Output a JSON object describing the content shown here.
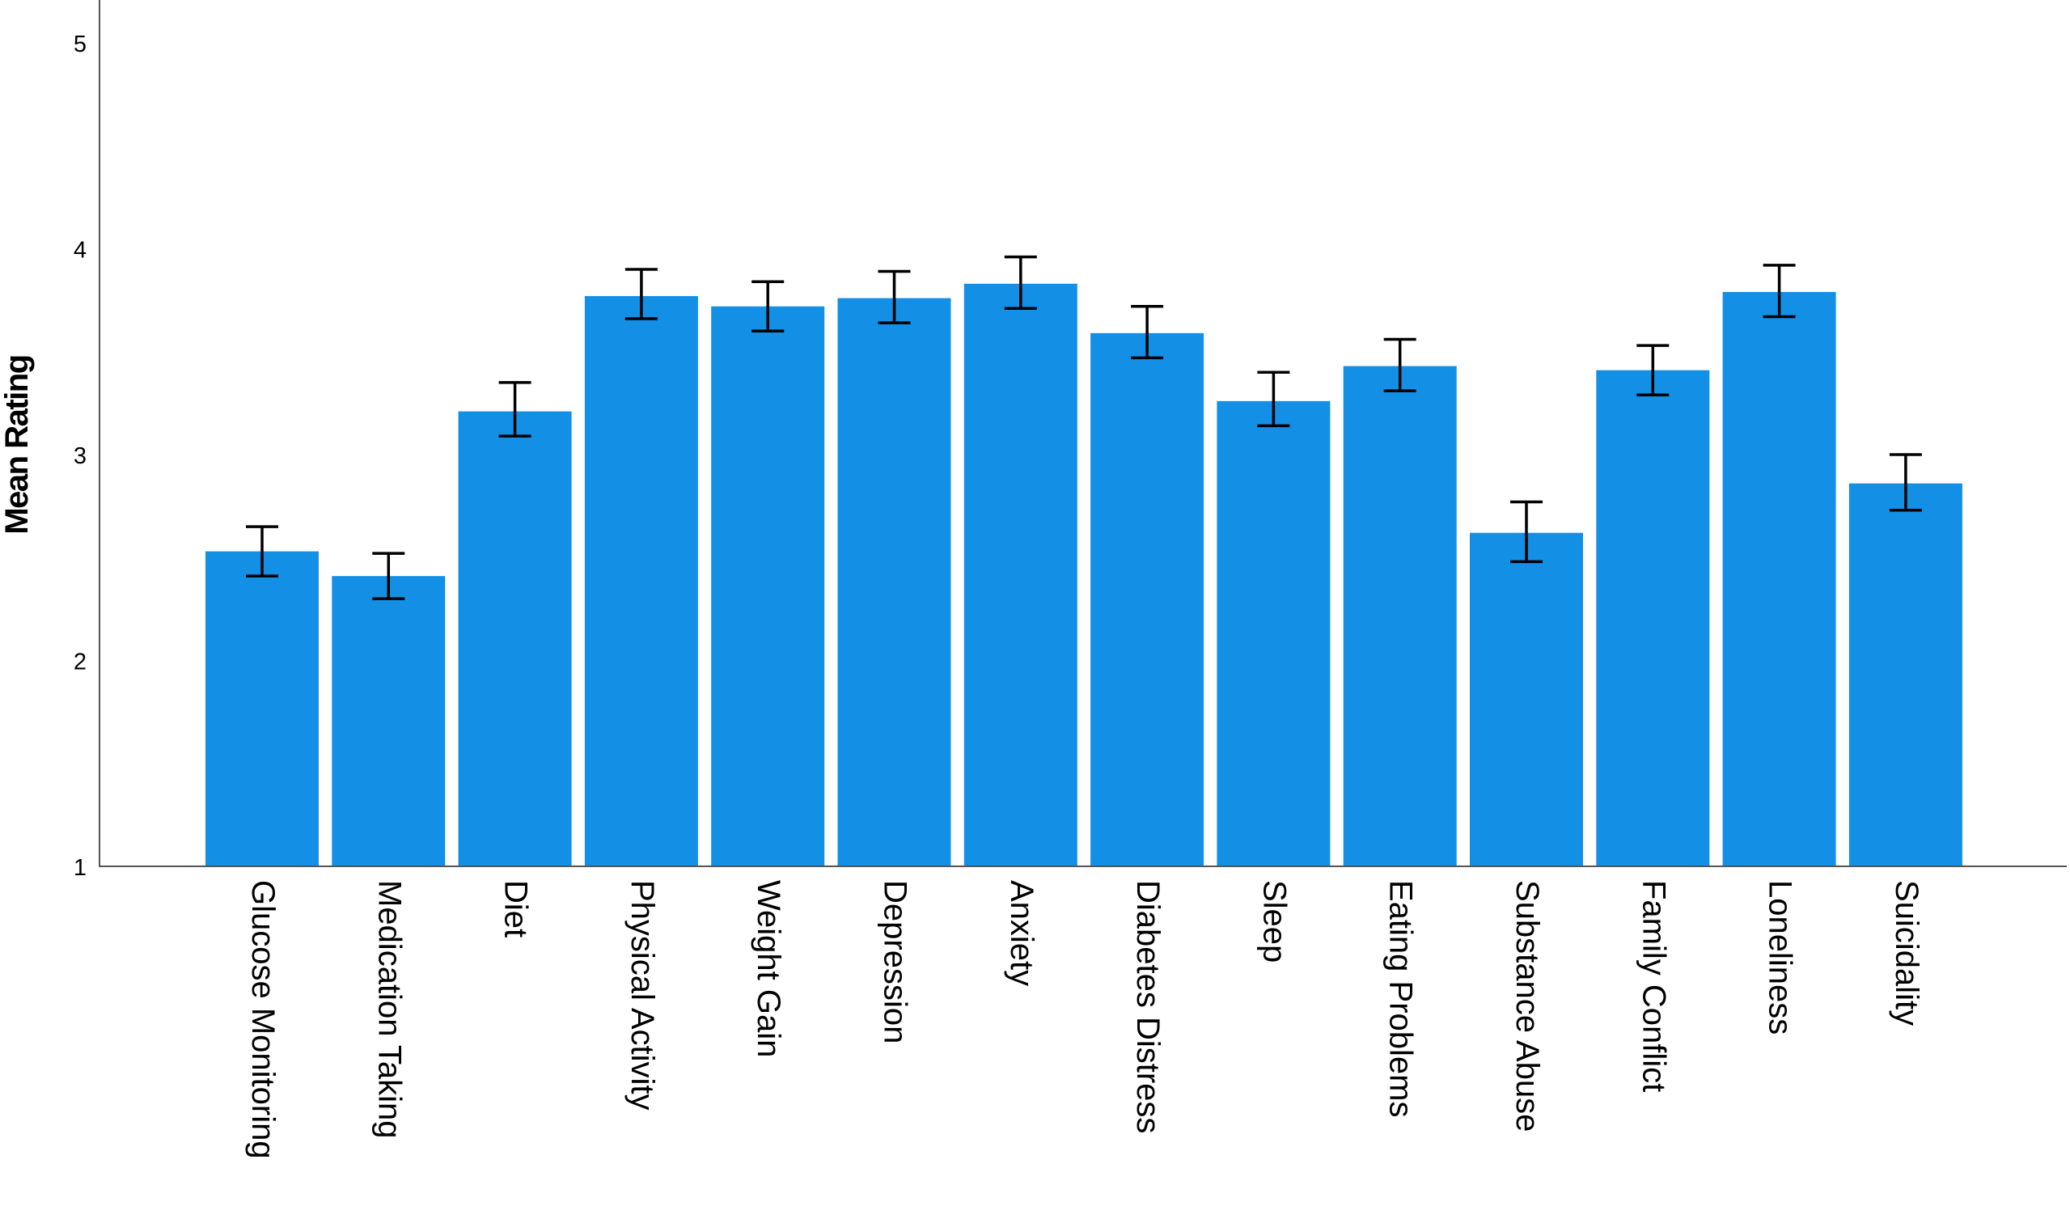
{
  "chart_data": {
    "type": "bar",
    "title": "",
    "xlabel": "",
    "ylabel": "Mean Rating",
    "ylim": [
      1,
      5.2
    ],
    "yticks": [
      1,
      2,
      3,
      4,
      5
    ],
    "grid": false,
    "legend": "none",
    "bar_color": "#1390e6",
    "error_bar_color": "#000000",
    "categories": [
      "Glucose Monitoring",
      "Medication Taking",
      "Diet",
      "Physical Activity",
      "Weight Gain",
      "Depression",
      "Anxiety",
      "Diabetes Distress",
      "Sleep",
      "Eating Problems",
      "Substance Abuse",
      "Family Conflict",
      "Loneliness",
      "Suicidality"
    ],
    "values": [
      2.53,
      2.41,
      3.21,
      3.77,
      3.72,
      3.76,
      3.83,
      3.59,
      3.26,
      3.43,
      2.62,
      3.41,
      3.79,
      2.86
    ],
    "error_low": [
      2.41,
      2.3,
      3.09,
      3.66,
      3.6,
      3.64,
      3.71,
      3.47,
      3.14,
      3.31,
      2.48,
      3.29,
      3.67,
      2.73
    ],
    "error_high": [
      2.65,
      2.52,
      3.35,
      3.9,
      3.84,
      3.89,
      3.96,
      3.72,
      3.4,
      3.56,
      2.77,
      3.53,
      3.92,
      3.0
    ]
  }
}
